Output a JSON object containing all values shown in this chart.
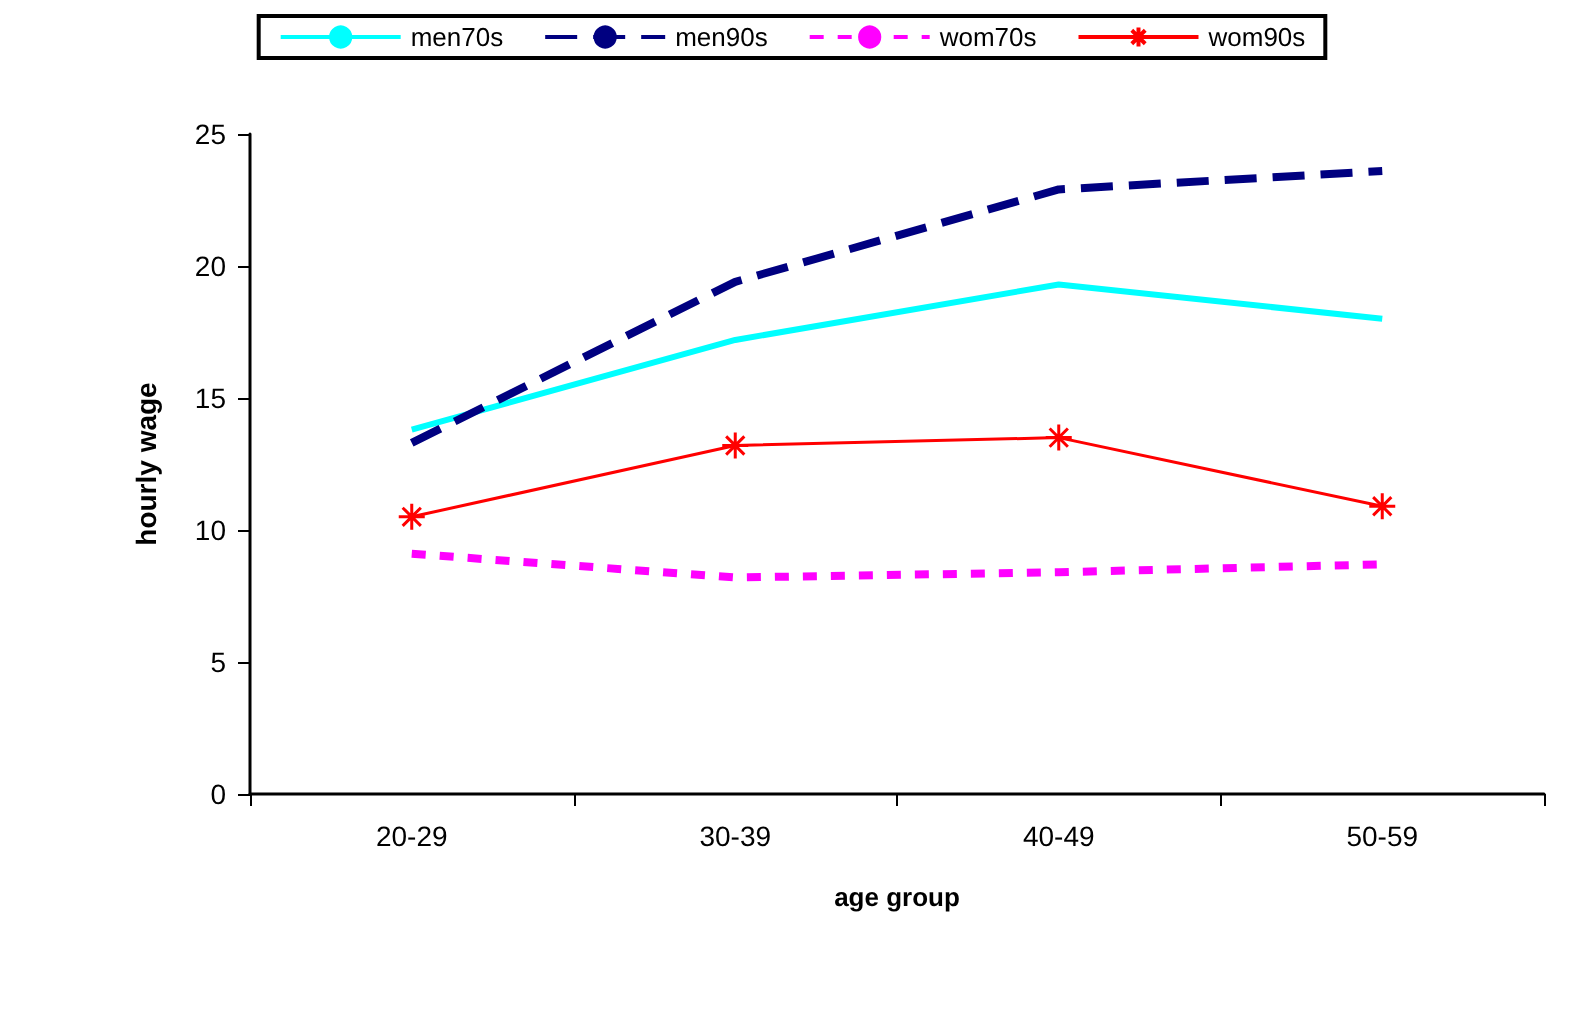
{
  "chart_data": {
    "type": "line",
    "xlabel": "age group",
    "ylabel": "hourly wage",
    "categories": [
      "20-29",
      "30-39",
      "40-49",
      "50-59"
    ],
    "series": [
      {
        "name": "men70s",
        "color": "#00ffff",
        "line_style": "solid",
        "marker": "none",
        "values": [
          13.8,
          17.2,
          19.3,
          18.0
        ]
      },
      {
        "name": "men90s",
        "color": "#000080",
        "line_style": "dashed",
        "marker": "none",
        "values": [
          13.3,
          19.4,
          22.9,
          23.6
        ]
      },
      {
        "name": "wom70s",
        "color": "#ff00ff",
        "line_style": "dotted",
        "marker": "none",
        "values": [
          9.1,
          8.2,
          8.4,
          8.7
        ]
      },
      {
        "name": "wom90s",
        "color": "#ff0000",
        "line_style": "solid",
        "marker": "cross",
        "values": [
          10.5,
          13.2,
          13.5,
          10.9
        ]
      }
    ],
    "ylim": [
      0,
      25
    ],
    "yticks": [
      0,
      5,
      10,
      15,
      20,
      25
    ],
    "grid": false,
    "legend": "top"
  }
}
